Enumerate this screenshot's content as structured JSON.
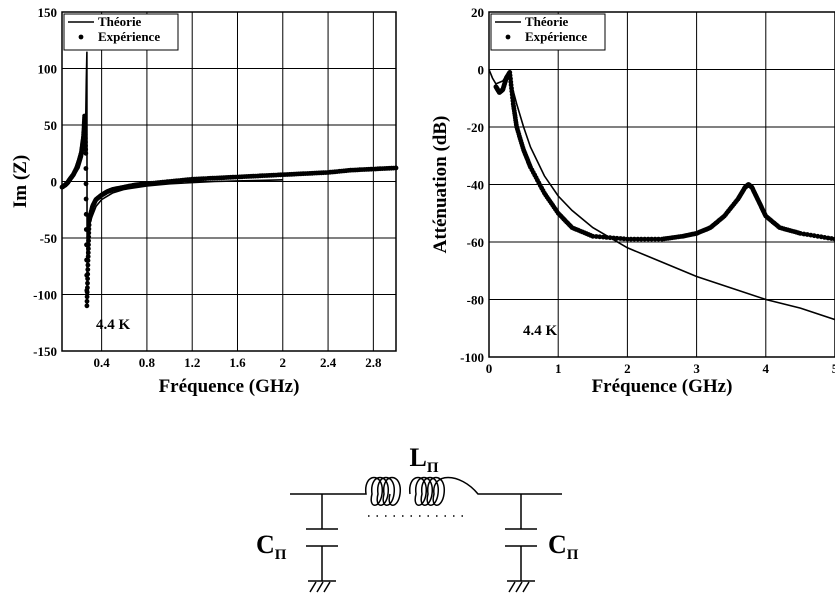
{
  "chart_data": [
    {
      "type": "line",
      "xlabel": "Fréquence (GHz)",
      "ylabel": "Im (Z)",
      "xlim": [
        0.05,
        3.0
      ],
      "ylim": [
        -150,
        150
      ],
      "xticks": [
        "0.4",
        "0.8",
        "1.2",
        "1.6",
        "2",
        "2.4",
        "2.8"
      ],
      "yticks": [
        "150",
        "100",
        "50",
        "0",
        "-50",
        "-100",
        "-150"
      ],
      "grid": true,
      "legend_position": "top-left",
      "annotation": "4.4 K",
      "series": [
        {
          "name": "Théorie",
          "style": "line",
          "x": [
            0.05,
            0.1,
            0.15,
            0.2,
            0.23,
            0.25,
            0.26,
            0.265,
            0.27,
            0.272,
            0.275,
            0.28,
            0.3,
            0.35,
            0.4,
            0.5,
            0.6,
            0.8,
            1.0,
            1.2,
            1.4,
            1.6,
            1.8,
            2.0
          ],
          "y": [
            -4,
            -1,
            4,
            12,
            22,
            38,
            60,
            90,
            115,
            -110,
            -80,
            -55,
            -35,
            -22,
            -16,
            -10,
            -7,
            -4,
            -2,
            -1,
            0,
            0.5,
            1,
            1.5
          ]
        },
        {
          "name": "Expérience",
          "style": "markers",
          "x": [
            0.05,
            0.08,
            0.1,
            0.12,
            0.15,
            0.18,
            0.2,
            0.22,
            0.24,
            0.25,
            0.26,
            0.27,
            0.28,
            0.29,
            0.3,
            0.32,
            0.35,
            0.4,
            0.45,
            0.5,
            0.6,
            0.7,
            0.8,
            1.0,
            1.2,
            1.4,
            1.6,
            1.8,
            2.0,
            2.2,
            2.4,
            2.6,
            2.8,
            3.0
          ],
          "y": [
            -5,
            -3,
            -1,
            2,
            6,
            12,
            18,
            25,
            40,
            58,
            25,
            -110,
            -70,
            -35,
            -30,
            -22,
            -16,
            -12,
            -9,
            -7,
            -5,
            -3,
            -2,
            0,
            2,
            3,
            4,
            5,
            6,
            7,
            8,
            10,
            11,
            12
          ]
        }
      ]
    },
    {
      "type": "line",
      "xlabel": "Fréquence (GHz)",
      "ylabel": "Atténuation (dB)",
      "xlim": [
        0,
        5
      ],
      "ylim": [
        -100,
        20
      ],
      "xticks": [
        "0",
        "1",
        "2",
        "3",
        "4",
        "5"
      ],
      "yticks": [
        "20",
        "0",
        "-20",
        "-40",
        "-60",
        "-80",
        "-100"
      ],
      "grid": true,
      "legend_position": "top-left",
      "annotation": "4.4 K",
      "series": [
        {
          "name": "Théorie",
          "style": "line",
          "x": [
            0,
            0.05,
            0.1,
            0.2,
            0.25,
            0.3,
            0.4,
            0.5,
            0.6,
            0.8,
            1.0,
            1.2,
            1.5,
            2.0,
            2.5,
            3.0,
            3.5,
            4.0,
            4.5,
            5.0
          ],
          "y": [
            0,
            -3,
            -5,
            -4,
            -2,
            -3,
            -12,
            -20,
            -27,
            -37,
            -44,
            -49,
            -55,
            -62,
            -67,
            -72,
            -76,
            -80,
            -83,
            -87
          ]
        },
        {
          "name": "Expérience",
          "style": "markers",
          "x": [
            0.1,
            0.15,
            0.2,
            0.25,
            0.3,
            0.35,
            0.4,
            0.5,
            0.6,
            0.8,
            1.0,
            1.2,
            1.5,
            2.0,
            2.5,
            2.8,
            3.0,
            3.2,
            3.4,
            3.6,
            3.7,
            3.75,
            3.8,
            3.9,
            4.0,
            4.2,
            4.5,
            5.0
          ],
          "y": [
            -6,
            -8,
            -7,
            -3,
            -1,
            -12,
            -20,
            -28,
            -34,
            -43,
            -50,
            -55,
            -58,
            -59,
            -59,
            -58,
            -57,
            -55,
            -51,
            -45,
            -41,
            -40,
            -41,
            -46,
            -51,
            -55,
            -57,
            -59
          ]
        }
      ]
    }
  ],
  "circuit": {
    "inductor_label": "L",
    "inductor_subscript": "Π",
    "left_capacitor_label": "C",
    "left_capacitor_subscript": "Π",
    "right_capacitor_label": "C",
    "right_capacitor_subscript": "Π"
  }
}
